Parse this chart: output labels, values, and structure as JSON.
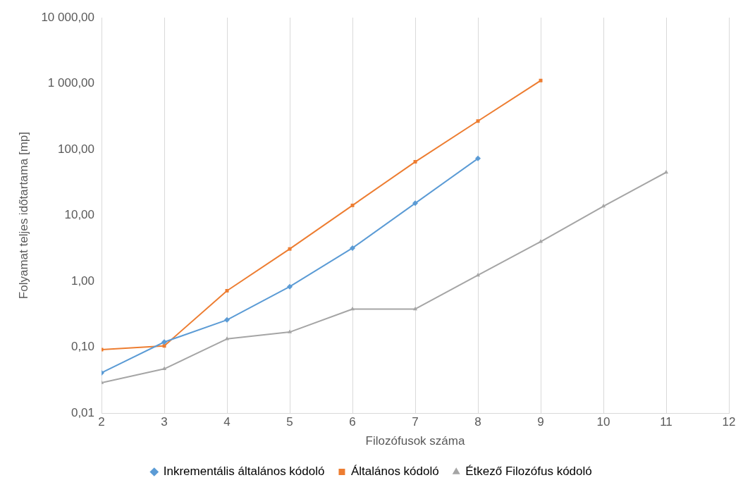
{
  "chart_data": {
    "type": "line",
    "xlabel": "Filozófusok száma",
    "ylabel": "Folyamat teljes időtartama [mp]",
    "xlim": [
      2,
      12
    ],
    "xticks": [
      2,
      3,
      4,
      5,
      6,
      7,
      8,
      9,
      10,
      11,
      12
    ],
    "ylim": [
      0.01,
      10000
    ],
    "yticks": [
      {
        "value": 0.01,
        "label": "0,01"
      },
      {
        "value": 0.1,
        "label": "0,10"
      },
      {
        "value": 1,
        "label": "1,00"
      },
      {
        "value": 10,
        "label": "10,00"
      },
      {
        "value": 100,
        "label": "100,00"
      },
      {
        "value": 1000,
        "label": "1 000,00"
      },
      {
        "value": 10000,
        "label": "10 000,00"
      }
    ],
    "log": "y",
    "grid": "x",
    "legend": "bottom",
    "series": [
      {
        "name": "Inkrementális általános kódoló",
        "color": "#5b9bd5",
        "marker": "diamond",
        "x": [
          2,
          3,
          4,
          5,
          6,
          7,
          8
        ],
        "values": [
          0.041,
          0.12,
          0.26,
          0.83,
          3.2,
          15.3,
          73
        ]
      },
      {
        "name": "Általános kódoló",
        "color": "#ed7d31",
        "marker": "square",
        "x": [
          2,
          3,
          4,
          5,
          6,
          7,
          8,
          9
        ],
        "values": [
          0.092,
          0.105,
          0.72,
          3.1,
          14.2,
          65,
          270,
          1110
        ]
      },
      {
        "name": "Étkező Filozófus kódoló",
        "color": "#a5a5a5",
        "marker": "triangle",
        "x": [
          2,
          3,
          4,
          5,
          6,
          7,
          8,
          9,
          10,
          11
        ],
        "values": [
          0.029,
          0.047,
          0.134,
          0.17,
          0.38,
          0.38,
          1.24,
          4.0,
          13.8,
          45
        ]
      }
    ]
  }
}
